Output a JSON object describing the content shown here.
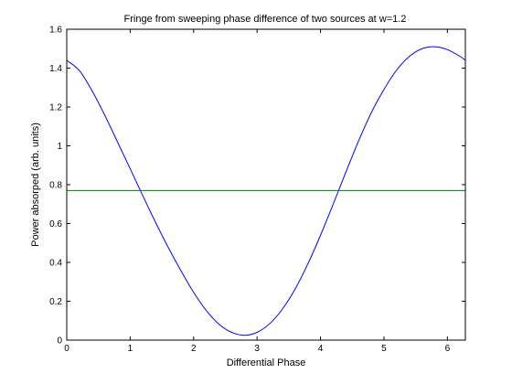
{
  "chart_data": {
    "type": "line",
    "title": "Fringe from sweeping phase difference of two sources at w=1.2",
    "xlabel": "Differential Phase",
    "ylabel": "Power absorped (arb. units)",
    "xlim": [
      0,
      6.2832
    ],
    "ylim": [
      0,
      1.6
    ],
    "xticks": [
      0,
      1,
      2,
      3,
      4,
      5,
      6
    ],
    "yticks": [
      0,
      0.2,
      0.4,
      0.6,
      0.8,
      1,
      1.2,
      1.4,
      1.6
    ],
    "xtick_labels": [
      "0",
      "1",
      "2",
      "3",
      "4",
      "5",
      "6"
    ],
    "ytick_labels": [
      "0",
      "0.2",
      "0.4",
      "0.6",
      "0.8",
      "1",
      "1.2",
      "1.4",
      "1.6"
    ],
    "grid": false,
    "legend": "none",
    "series": [
      {
        "color": "#0000ff",
        "x": [
          0,
          0.2,
          0.4,
          0.6,
          0.8,
          1.0,
          1.2,
          1.4,
          1.6,
          1.8,
          2.0,
          2.2,
          2.4,
          2.6,
          2.8,
          3.0,
          3.2,
          3.4,
          3.6,
          3.8,
          4.0,
          4.2,
          4.4,
          4.6,
          4.8,
          5.0,
          5.2,
          5.4,
          5.6,
          5.8,
          6.0,
          6.2,
          6.2832
        ],
        "y": [
          1.44,
          1.387,
          1.283,
          1.157,
          1.02,
          0.882,
          0.742,
          0.606,
          0.477,
          0.357,
          0.246,
          0.152,
          0.082,
          0.04,
          0.025,
          0.04,
          0.085,
          0.16,
          0.263,
          0.392,
          0.54,
          0.7,
          0.865,
          1.025,
          1.17,
          1.29,
          1.39,
          1.46,
          1.5,
          1.51,
          1.495,
          1.46,
          1.44
        ]
      },
      {
        "color": "#007f00",
        "x": [
          0,
          6.2832
        ],
        "y": [
          0.77,
          0.77
        ]
      }
    ]
  }
}
